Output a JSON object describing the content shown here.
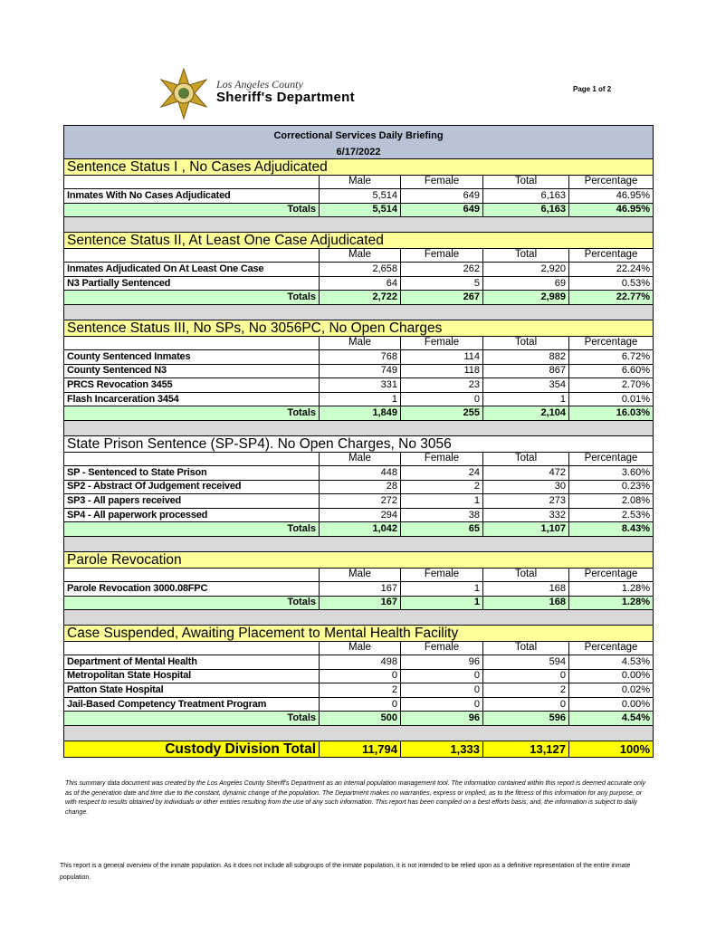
{
  "header": {
    "logo_line1": "Los Angeles County",
    "logo_line2": "Sheriff's Department",
    "page": "Page 1 of 2"
  },
  "title": "Correctional Services Daily Briefing",
  "date": "6/17/2022",
  "columns": [
    "Male",
    "Female",
    "Total",
    "Percentage"
  ],
  "sections": [
    {
      "title": "Sentence Status I , No Cases Adjudicated",
      "rows": [
        [
          "Inmates With No Cases Adjudicated",
          "5,514",
          "649",
          "6,163",
          "46.95%"
        ]
      ],
      "totals_label": "Totals",
      "totals": [
        "5,514",
        "649",
        "6,163",
        "46.95%"
      ]
    },
    {
      "title": "Sentence Status II, At Least One Case Adjudicated",
      "rows": [
        [
          "Inmates Adjudicated On At Least One Case",
          "2,658",
          "262",
          "2,920",
          "22.24%"
        ],
        [
          "N3 Partially Sentenced",
          "64",
          "5",
          "69",
          "0.53%"
        ]
      ],
      "totals_label": "Totals",
      "totals": [
        "2,722",
        "267",
        "2,989",
        "22.77%"
      ]
    },
    {
      "title": "Sentence Status III, No SPs, No 3056PC, No Open Charges",
      "rows": [
        [
          "County Sentenced Inmates",
          "768",
          "114",
          "882",
          "6.72%"
        ],
        [
          "County Sentenced N3",
          "749",
          "118",
          "867",
          "6.60%"
        ],
        [
          "PRCS Revocation 3455",
          "331",
          "23",
          "354",
          "2.70%"
        ],
        [
          "Flash Incarceration 3454",
          "1",
          "0",
          "1",
          "0.01%"
        ]
      ],
      "totals_label": "Totals",
      "totals": [
        "1,849",
        "255",
        "2,104",
        "16.03%"
      ]
    },
    {
      "title": "State Prison Sentence (SP-SP4). No Open Charges, No 3056",
      "rows": [
        [
          "SP - Sentenced to State Prison",
          "448",
          "24",
          "472",
          "3.60%"
        ],
        [
          "SP2 - Abstract Of Judgement received",
          "28",
          "2",
          "30",
          "0.23%"
        ],
        [
          "SP3 - All papers received",
          "272",
          "1",
          "273",
          "2.08%"
        ],
        [
          "SP4 - All paperwork processed",
          "294",
          "38",
          "332",
          "2.53%"
        ]
      ],
      "totals_label": "Totals",
      "totals": [
        "1,042",
        "65",
        "1,107",
        "8.43%"
      ]
    },
    {
      "title": "Parole Revocation",
      "rows": [
        [
          "Parole Revocation 3000.08FPC",
          "167",
          "1",
          "168",
          "1.28%"
        ]
      ],
      "totals_label": "Totals",
      "totals": [
        "167",
        "1",
        "168",
        "1.28%"
      ]
    },
    {
      "title": "Case Suspended, Awaiting Placement to Mental Health Facility",
      "rows": [
        [
          "Department of Mental Health",
          "498",
          "96",
          "594",
          "4.53%"
        ],
        [
          "Metropolitan State Hospital",
          "0",
          "0",
          "0",
          "0.00%"
        ],
        [
          "Patton State Hospital",
          "2",
          "0",
          "2",
          "0.02%"
        ],
        [
          "Jail-Based Competency Treatment Program",
          "0",
          "0",
          "0",
          "0.00%"
        ]
      ],
      "totals_label": "Totals",
      "totals": [
        "500",
        "96",
        "596",
        "4.54%"
      ]
    }
  ],
  "grand_total": {
    "label": "Custody Division Total",
    "values": [
      "11,794",
      "1,333",
      "13,127",
      "100%"
    ]
  },
  "disclaimer": "This summary data document was created by the Los Angeles County Sheriff's Department as an internal population management tool.  The information contained within this report is deemed accurate only as of the generation date and time due to the constant, dynamic change of the population.  The Department makes no warranties, express or implied, as to the fitness of this information for any purpose, or with respect to results obtained by individuals or other entities resulting from the use of any such information.  This report has been compiled on a best efforts basis, and, the information is subject to daily change.",
  "footnote": "This report is a general overview of the inmate population.  As it does not include all subgroups of the inmate population, it is not intended to be relied upon as a definitive representation of the entire inmate population."
}
